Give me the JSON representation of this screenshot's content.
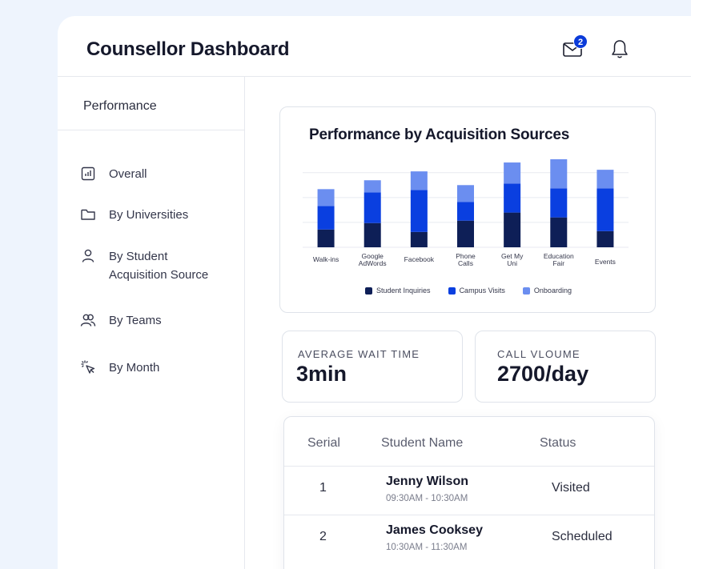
{
  "header": {
    "title": "Counsellor Dashboard",
    "mail_badge": "2",
    "mail_icon": "mail-icon",
    "bell_icon": "bell-icon"
  },
  "sidebar": {
    "heading": "Performance",
    "items": [
      {
        "label": "Overall",
        "icon": "bar-chart-icon"
      },
      {
        "label": "By Universities",
        "icon": "folder-icon"
      },
      {
        "label": "By Student\nAcquisition Source",
        "icon": "user-icon"
      },
      {
        "label": "By Teams",
        "icon": "users-icon"
      },
      {
        "label": "By Month",
        "icon": "cursor-click-icon"
      }
    ]
  },
  "chart_data": {
    "type": "bar",
    "stacked": true,
    "title": "Performance by Acquisition Sources",
    "categories": [
      "Walk-ins",
      "Google AdWords",
      "Facebook",
      "Phone Calls",
      "Get My Uni",
      "Education Fair",
      "Events"
    ],
    "series": [
      {
        "name": "Student Inquiries",
        "color": "#0e1f57",
        "values": [
          22,
          30,
          19,
          33,
          43,
          37,
          20
        ]
      },
      {
        "name": "Campus Visits",
        "color": "#0a3fe0",
        "values": [
          29,
          38,
          52,
          23,
          36,
          36,
          53
        ]
      },
      {
        "name": "Onboarding",
        "color": "#6b8ef0",
        "values": [
          21,
          15,
          23,
          21,
          26,
          36,
          23
        ]
      }
    ],
    "ylim": [
      0,
      110
    ],
    "grid": true,
    "legend": "bottom-center"
  },
  "stats": [
    {
      "label": "AVERAGE WAIT TIME",
      "value": "3min"
    },
    {
      "label": "CALL VLOUME",
      "value": "2700/day"
    }
  ],
  "table": {
    "columns": [
      "Serial",
      "Student Name",
      "Status"
    ],
    "rows": [
      {
        "serial": "1",
        "name": "Jenny Wilson",
        "time": "09:30AM - 10:30AM",
        "status": "Visited"
      },
      {
        "serial": "2",
        "name": "James Cooksey",
        "time": "10:30AM - 11:30AM",
        "status": "Scheduled"
      }
    ]
  }
}
